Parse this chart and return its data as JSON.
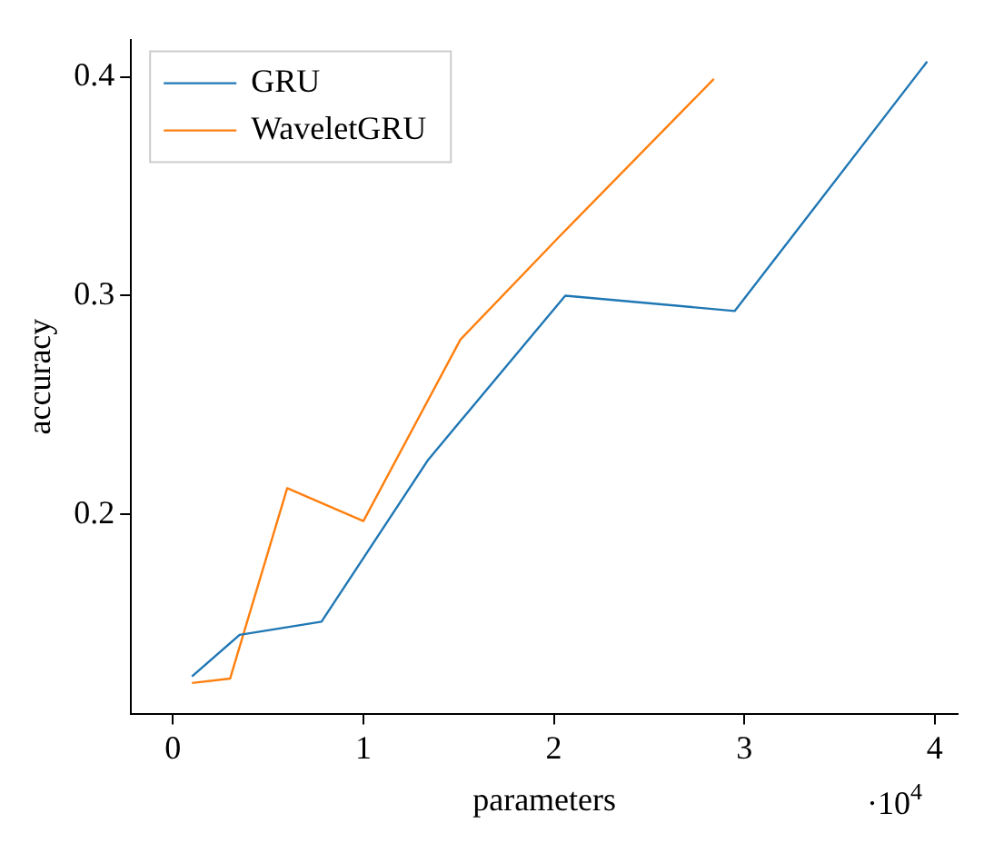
{
  "chart_data": {
    "type": "line",
    "xlabel": "parameters",
    "ylabel": "accuracy",
    "series": [
      {
        "name": "GRU",
        "color": "#1f77b4",
        "x": [
          0.1,
          0.35,
          0.78,
          1.34,
          2.06,
          2.95,
          3.96
        ],
        "values": [
          0.126,
          0.145,
          0.151,
          0.225,
          0.3,
          0.293,
          0.407
        ]
      },
      {
        "name": "WaveletGRU",
        "color": "#ff7f0e",
        "x": [
          0.1,
          0.3,
          0.6,
          1.0,
          1.51,
          2.04,
          2.84
        ],
        "values": [
          0.123,
          0.125,
          0.212,
          0.197,
          0.28,
          0.328,
          0.399
        ]
      }
    ],
    "xlim": [
      -0.22,
      4.12
    ],
    "xticks": [
      0,
      1,
      2,
      3,
      4
    ],
    "ylim": [
      0.109,
      0.417
    ],
    "yticks": [
      0.2,
      0.3,
      0.4
    ],
    "annotations": [
      "·10$^{4}$"
    ],
    "grid": false,
    "legend": "top left",
    "marker": "none",
    "line_style": "solid"
  }
}
